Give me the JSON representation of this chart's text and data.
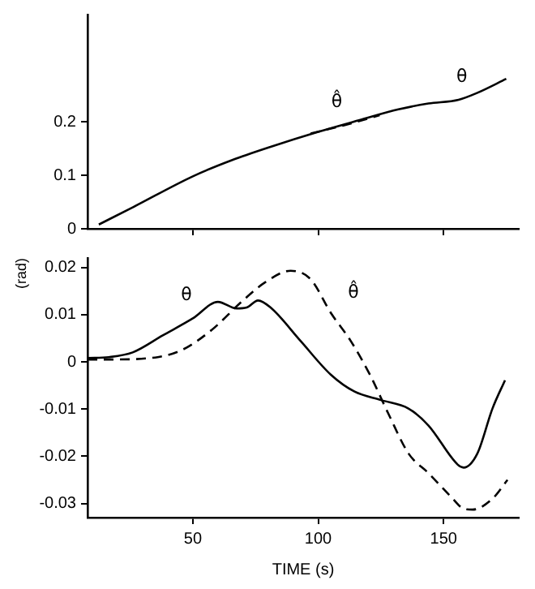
{
  "chart_data": [
    {
      "type": "line",
      "tick_labels": "y",
      "grid": false,
      "legend": false,
      "marker": "none",
      "xlim": [
        8,
        180
      ],
      "xticks": [
        50,
        100,
        150
      ],
      "ylim": [
        0,
        0.4
      ],
      "yticks": [
        0,
        0.1,
        0.2
      ],
      "series": [
        {
          "name": "θ",
          "color": "#000000",
          "line_style": "solid",
          "x": [
            12.5,
            26,
            50,
            65.5,
            81,
            100,
            116.5,
            132,
            144,
            156,
            163.5,
            175
          ],
          "values": [
            0.008,
            0.04,
            0.098,
            0.128,
            0.153,
            0.181,
            0.203,
            0.223,
            0.234,
            0.241,
            0.254,
            0.28
          ]
        },
        {
          "name": "θ̂",
          "color": "#000000",
          "line_style": "dashed",
          "x": [
            97,
            110,
            124.5
          ],
          "values": [
            0.178,
            0.193,
            0.212
          ]
        }
      ]
    },
    {
      "type": "line",
      "grid": false,
      "legend": false,
      "marker": "none",
      "ylabel": "(rad)",
      "xlabel": "TIME (s)",
      "xlim": [
        8,
        180
      ],
      "xticks": [
        50,
        100,
        150
      ],
      "ylim": [
        -0.033,
        0.022
      ],
      "yticks": [
        -0.03,
        -0.02,
        -0.01,
        0,
        0.01,
        0.02
      ],
      "series": [
        {
          "name": "θ",
          "color": "#000000",
          "line_style": "solid",
          "x": [
            8,
            16.5,
            26,
            38,
            50,
            60,
            67.5,
            71.5,
            76,
            81,
            93,
            105,
            114.5,
            125,
            136,
            144,
            155.7,
            158,
            163.5,
            169.5,
            174.5
          ],
          "values": [
            0.0008,
            0.001,
            0.002,
            0.0056,
            0.0092,
            0.0127,
            0.0113,
            0.0115,
            0.013,
            0.0115,
            0.0044,
            -0.0027,
            -0.0063,
            -0.0081,
            -0.0099,
            -0.0135,
            -0.0218,
            -0.0224,
            -0.0194,
            -0.0099,
            -0.0039
          ]
        },
        {
          "name": "θ̂",
          "color": "#000000",
          "line_style": "dashed",
          "x": [
            8,
            16.5,
            36,
            46,
            57.6,
            69.4,
            79,
            89,
            97,
            105,
            113,
            120.6,
            128,
            136,
            144,
            153.7,
            157.6,
            161.6,
            169.5,
            175.5
          ],
          "values": [
            0.0005,
            0.0005,
            0.001,
            0.0026,
            0.0068,
            0.0127,
            0.0169,
            0.0193,
            0.0175,
            0.0104,
            0.0044,
            -0.0027,
            -0.011,
            -0.0194,
            -0.0236,
            -0.029,
            -0.031,
            -0.0313,
            -0.029,
            -0.025
          ]
        }
      ]
    }
  ]
}
